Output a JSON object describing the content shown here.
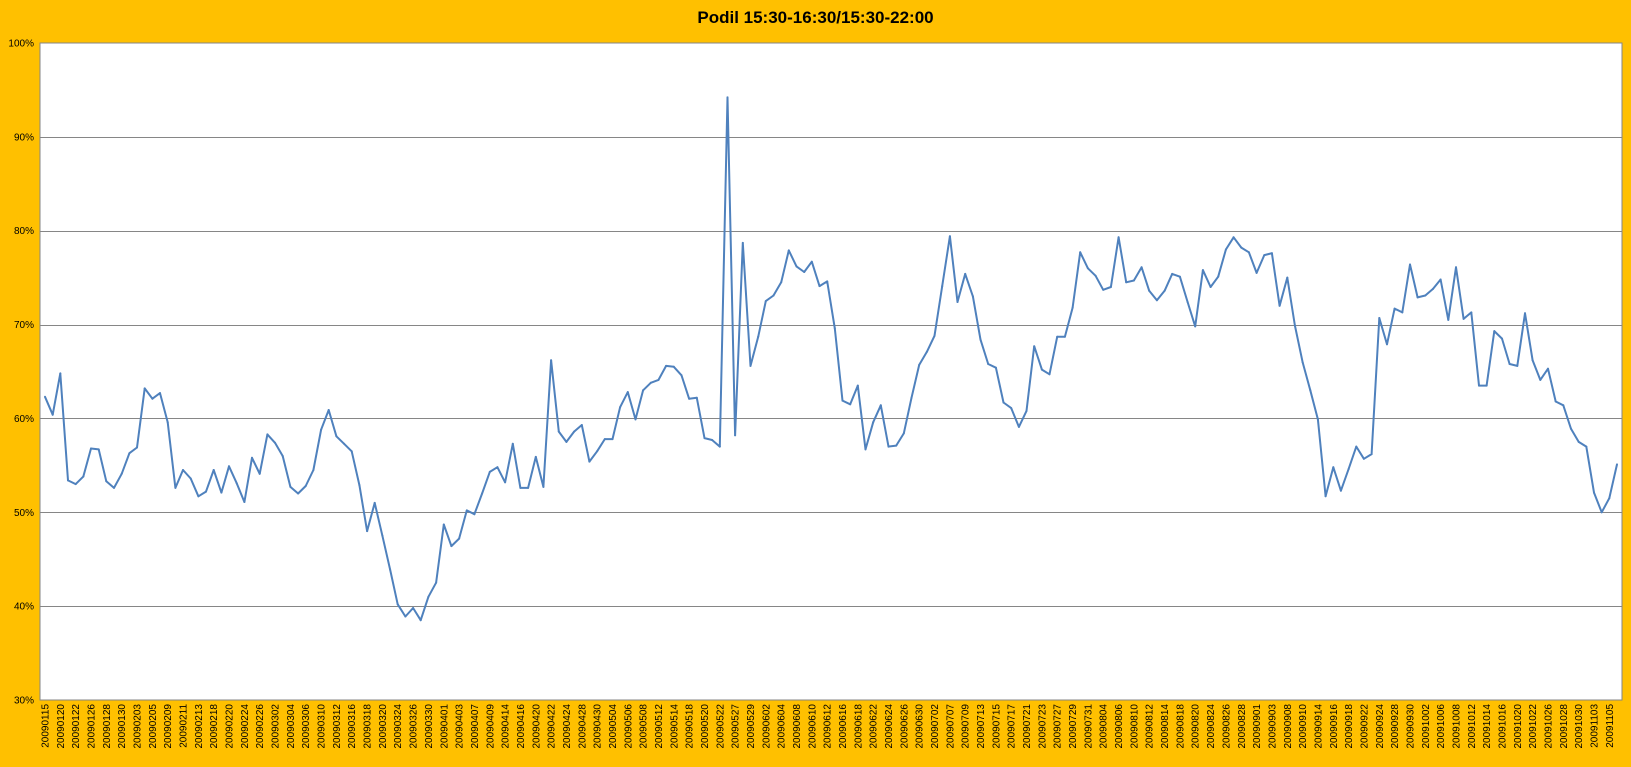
{
  "colors": {
    "background": "#FFC000",
    "plot_area": "#FFFFFF",
    "gridline": "#868686",
    "series_line": "#4F81BD"
  },
  "chart_data": {
    "type": "line",
    "title": "Podil 15:30-16:30/15:30-22:00",
    "xlabel": "",
    "ylabel": "",
    "ylim": [
      0.3,
      1.0
    ],
    "y_tick_values": [
      0.3,
      0.4,
      0.5,
      0.6,
      0.7,
      0.8,
      0.9,
      1.0
    ],
    "y_tick_labels": [
      "30%",
      "40%",
      "50%",
      "60%",
      "70%",
      "80%",
      "90%",
      "100%"
    ],
    "grid": true,
    "legend": "none",
    "x_tick_labels": [
      "20090115",
      "20090120",
      "20090122",
      "20090126",
      "20090128",
      "20090130",
      "20090203",
      "20090205",
      "20090209",
      "20090211",
      "20090213",
      "20090218",
      "20090220",
      "20090224",
      "20090226",
      "20090302",
      "20090304",
      "20090306",
      "20090310",
      "20090312",
      "20090316",
      "20090318",
      "20090320",
      "20090324",
      "20090326",
      "20090330",
      "20090401",
      "20090403",
      "20090407",
      "20090409",
      "20090414",
      "20090416",
      "20090420",
      "20090422",
      "20090424",
      "20090428",
      "20090430",
      "20090504",
      "20090506",
      "20090508",
      "20090512",
      "20090514",
      "20090518",
      "20090520",
      "20090522",
      "20090527",
      "20090529",
      "20090602",
      "20090604",
      "20090608",
      "20090610",
      "20090612",
      "20090616",
      "20090618",
      "20090622",
      "20090624",
      "20090626",
      "20090630",
      "20090702",
      "20090707",
      "20090709",
      "20090713",
      "20090715",
      "20090717",
      "20090721",
      "20090723",
      "20090727",
      "20090729",
      "20090731",
      "20090804",
      "20090806",
      "20090810",
      "20090812",
      "20090814",
      "20090818",
      "20090820",
      "20090824",
      "20090826",
      "20090828",
      "20090901",
      "20090903",
      "20090908",
      "20090910",
      "20090914",
      "20090916",
      "20090918",
      "20090922",
      "20090924",
      "20090928",
      "20090930",
      "20091002",
      "20091006",
      "20091008",
      "20091012",
      "20091014",
      "20091016",
      "20091020",
      "20091022",
      "20091026",
      "20091028",
      "20091030",
      "20091103",
      "20091105"
    ],
    "series": [
      {
        "values": [
          0.623,
          0.604,
          0.648,
          0.534,
          0.53,
          0.538,
          0.568,
          0.567,
          0.533,
          0.526,
          0.541,
          0.563,
          0.569,
          0.632,
          0.621,
          0.627,
          0.596,
          0.526,
          0.545,
          0.536,
          0.517,
          0.522,
          0.545,
          0.521,
          0.549,
          0.531,
          0.511,
          0.558,
          0.541,
          0.583,
          0.574,
          0.56,
          0.527,
          0.52,
          0.528,
          0.545,
          0.588,
          0.609,
          0.581,
          0.573,
          0.565,
          0.529,
          0.48,
          0.51,
          0.475,
          0.439,
          0.402,
          0.389,
          0.398,
          0.385,
          0.41,
          0.425,
          0.487,
          0.464,
          0.472,
          0.502,
          0.498,
          0.52,
          0.543,
          0.548,
          0.532,
          0.573,
          0.526,
          0.526,
          0.559,
          0.527,
          0.662,
          0.586,
          0.575,
          0.586,
          0.593,
          0.554,
          0.565,
          0.578,
          0.578,
          0.612,
          0.628,
          0.599,
          0.63,
          0.638,
          0.641,
          0.656,
          0.655,
          0.646,
          0.621,
          0.622,
          0.579,
          0.577,
          0.57,
          0.942,
          0.582,
          0.787,
          0.656,
          0.687,
          0.725,
          0.731,
          0.745,
          0.779,
          0.762,
          0.756,
          0.767,
          0.741,
          0.746,
          0.696,
          0.619,
          0.615,
          0.635,
          0.567,
          0.596,
          0.614,
          0.57,
          0.571,
          0.584,
          0.622,
          0.657,
          0.671,
          0.688,
          0.741,
          0.794,
          0.724,
          0.754,
          0.73,
          0.684,
          0.658,
          0.654,
          0.617,
          0.611,
          0.591,
          0.608,
          0.677,
          0.652,
          0.647,
          0.687,
          0.687,
          0.718,
          0.777,
          0.76,
          0.752,
          0.737,
          0.74,
          0.793,
          0.745,
          0.747,
          0.761,
          0.736,
          0.726,
          0.736,
          0.754,
          0.751,
          0.724,
          0.698,
          0.758,
          0.74,
          0.751,
          0.78,
          0.793,
          0.782,
          0.777,
          0.755,
          0.774,
          0.776,
          0.72,
          0.75,
          0.699,
          0.66,
          0.63,
          0.599,
          0.517,
          0.548,
          0.523,
          0.546,
          0.57,
          0.557,
          0.562,
          0.707,
          0.679,
          0.717,
          0.713,
          0.764,
          0.729,
          0.731,
          0.738,
          0.748,
          0.705,
          0.761,
          0.706,
          0.713,
          0.635,
          0.635,
          0.693,
          0.685,
          0.658,
          0.656,
          0.712,
          0.662,
          0.641,
          0.653,
          0.618,
          0.614,
          0.589,
          0.575,
          0.57,
          0.521,
          0.5,
          0.515,
          0.551
        ]
      }
    ]
  }
}
